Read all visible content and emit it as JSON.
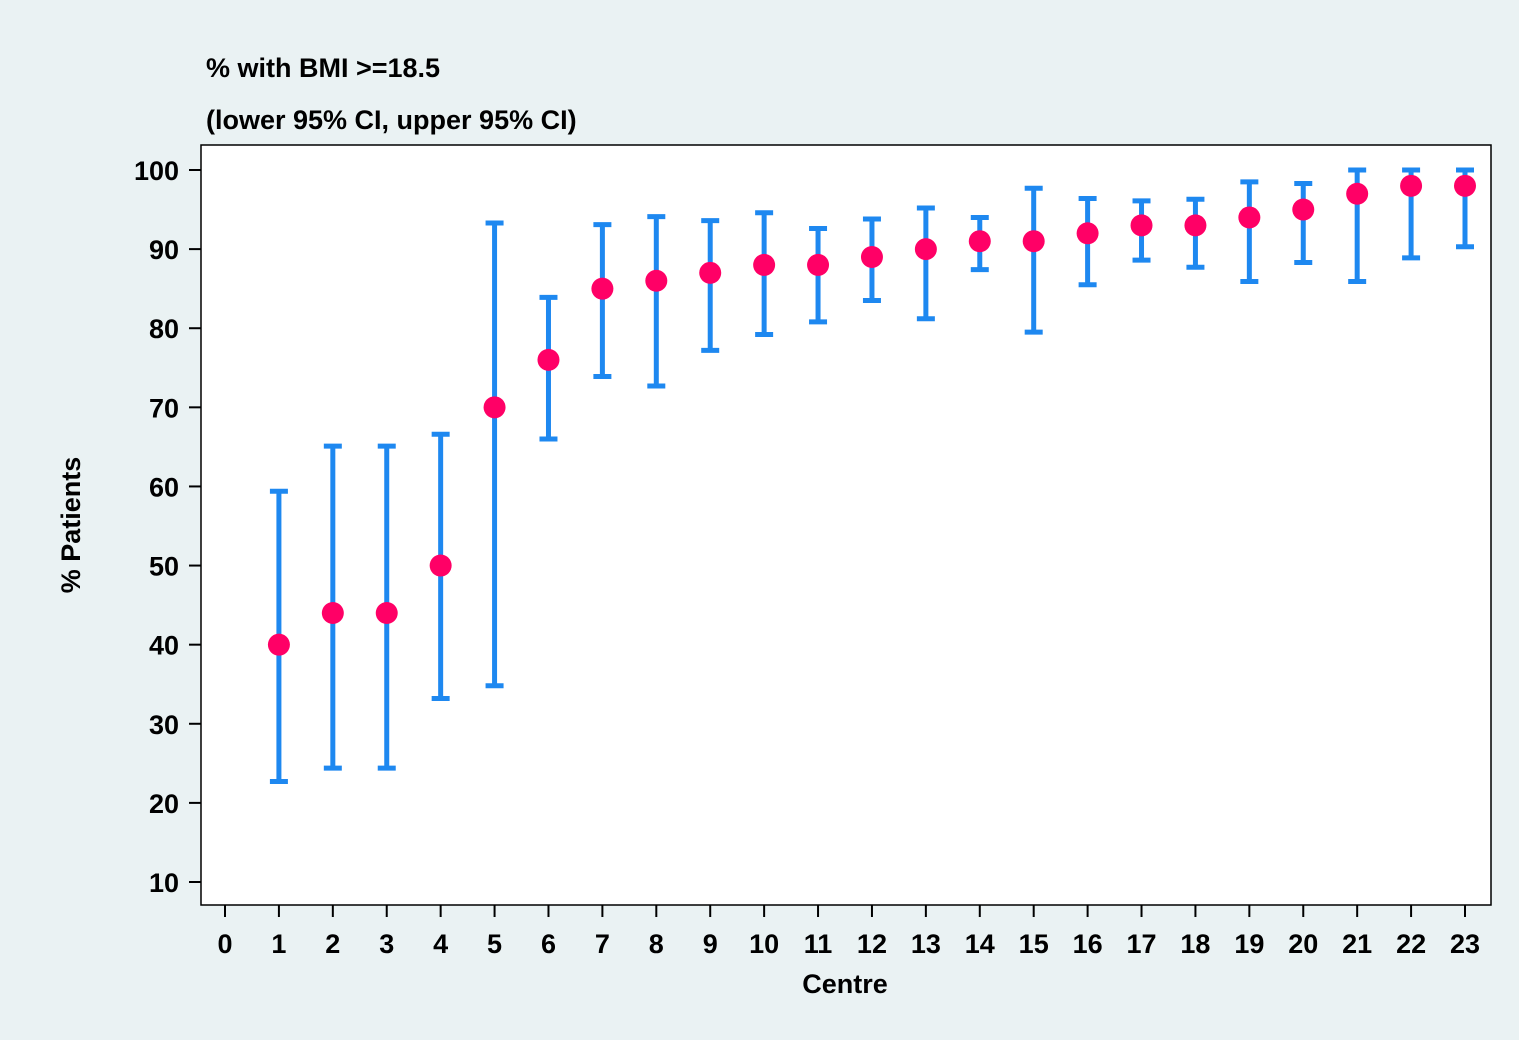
{
  "chart_data": {
    "type": "scatter",
    "title": "% with BMI >=18.5",
    "subtitle": "(lower 95% CI, upper 95% CI)",
    "xlabel": "Centre",
    "ylabel": "% Patients",
    "xlim": [
      0,
      23
    ],
    "ylim": [
      10,
      100
    ],
    "x_ticks": [
      "0",
      "1",
      "2",
      "3",
      "4",
      "5",
      "6",
      "7",
      "8",
      "9",
      "10",
      "11",
      "12",
      "13",
      "14",
      "15",
      "16",
      "17",
      "18",
      "19",
      "20",
      "21",
      "22",
      "23"
    ],
    "y_ticks": [
      "10",
      "20",
      "30",
      "40",
      "50",
      "60",
      "70",
      "80",
      "90",
      "100"
    ],
    "grid": false,
    "legend": "none",
    "colors": {
      "background": "#eaf2f3",
      "plot_background": "#ffffff",
      "point": "#ff0066",
      "error_bar": "#1e88f0",
      "axis": "#000000"
    },
    "points": [
      {
        "x": 1,
        "y": 40,
        "lower": 22.7,
        "upper": 59.4
      },
      {
        "x": 2,
        "y": 44,
        "lower": 24.4,
        "upper": 65.1
      },
      {
        "x": 3,
        "y": 44,
        "lower": 24.4,
        "upper": 65.1
      },
      {
        "x": 4,
        "y": 50,
        "lower": 33.2,
        "upper": 66.6
      },
      {
        "x": 5,
        "y": 70,
        "lower": 34.8,
        "upper": 93.3
      },
      {
        "x": 6,
        "y": 76,
        "lower": 66.0,
        "upper": 83.9
      },
      {
        "x": 7,
        "y": 85,
        "lower": 73.9,
        "upper": 93.1
      },
      {
        "x": 8,
        "y": 86,
        "lower": 72.7,
        "upper": 94.1
      },
      {
        "x": 9,
        "y": 87,
        "lower": 77.2,
        "upper": 93.6
      },
      {
        "x": 10,
        "y": 88,
        "lower": 79.2,
        "upper": 94.6
      },
      {
        "x": 11,
        "y": 88,
        "lower": 80.8,
        "upper": 92.6
      },
      {
        "x": 12,
        "y": 89,
        "lower": 83.5,
        "upper": 93.8
      },
      {
        "x": 13,
        "y": 90,
        "lower": 81.2,
        "upper": 95.2
      },
      {
        "x": 14,
        "y": 91,
        "lower": 87.4,
        "upper": 94.0
      },
      {
        "x": 15,
        "y": 91,
        "lower": 79.5,
        "upper": 97.7
      },
      {
        "x": 16,
        "y": 92,
        "lower": 85.5,
        "upper": 96.4
      },
      {
        "x": 17,
        "y": 93,
        "lower": 88.6,
        "upper": 96.1
      },
      {
        "x": 18,
        "y": 93,
        "lower": 87.7,
        "upper": 96.3
      },
      {
        "x": 19,
        "y": 94,
        "lower": 85.9,
        "upper": 98.5
      },
      {
        "x": 20,
        "y": 95,
        "lower": 88.3,
        "upper": 98.3
      },
      {
        "x": 21,
        "y": 97,
        "lower": 85.9,
        "upper": 100
      },
      {
        "x": 22,
        "y": 98,
        "lower": 88.9,
        "upper": 100
      },
      {
        "x": 23,
        "y": 98,
        "lower": 90.3,
        "upper": 100
      }
    ]
  }
}
